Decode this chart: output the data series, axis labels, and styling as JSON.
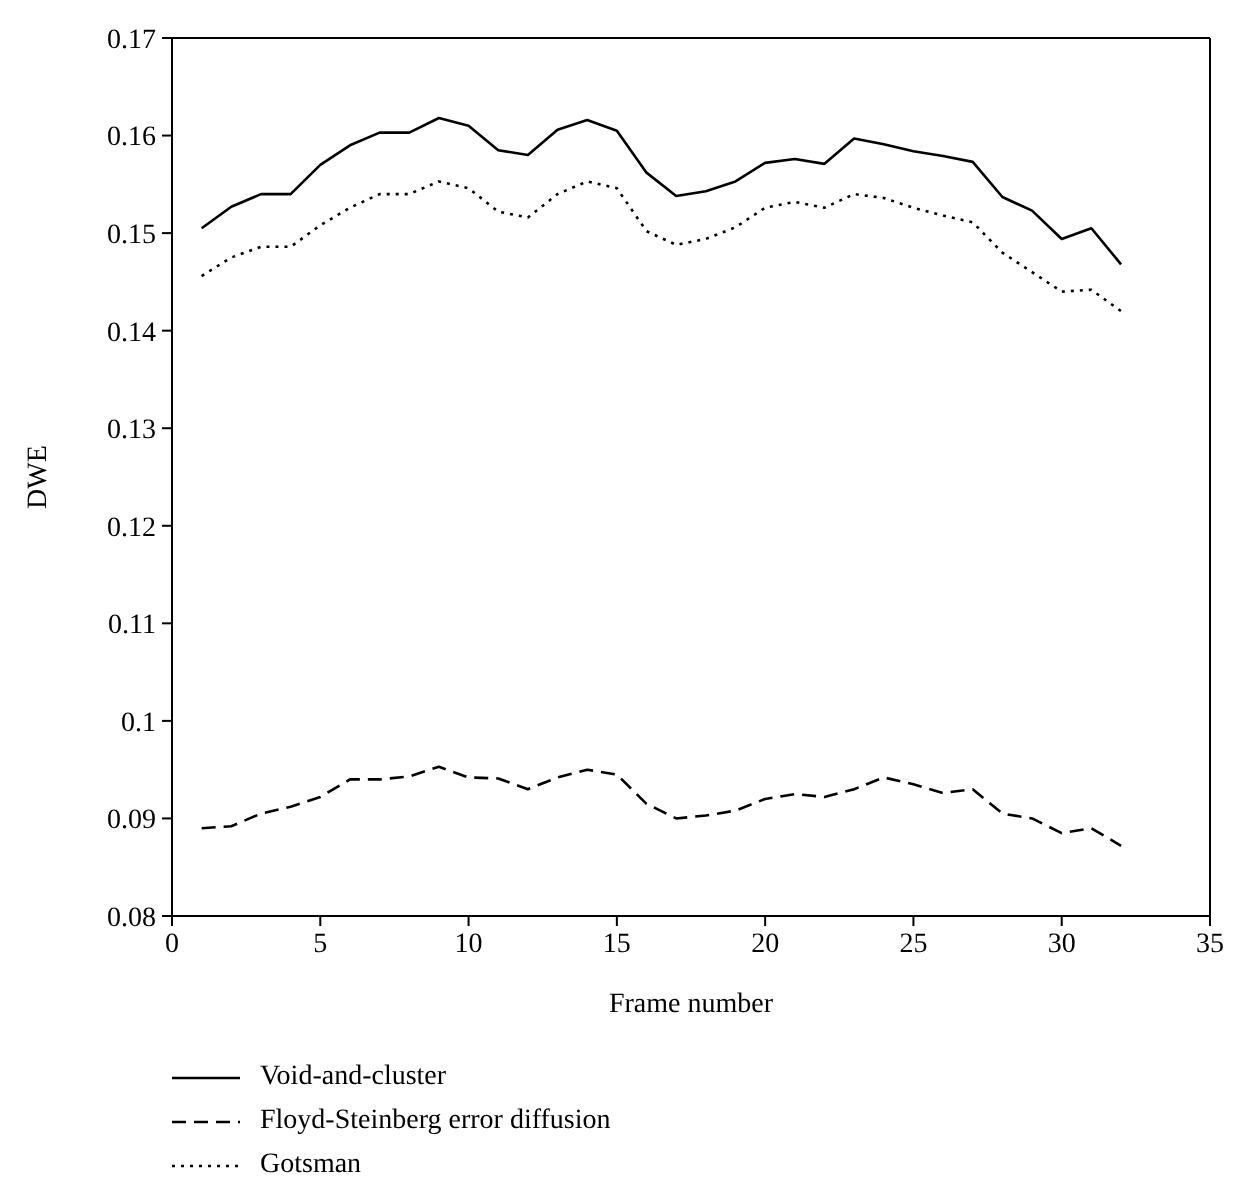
{
  "chart_data": {
    "type": "line",
    "xlabel": "Frame number",
    "ylabel": "DWE",
    "x": [
      1,
      2,
      3,
      4,
      5,
      6,
      7,
      8,
      9,
      10,
      11,
      12,
      13,
      14,
      15,
      16,
      17,
      18,
      19,
      20,
      21,
      22,
      23,
      24,
      25,
      26,
      27,
      28,
      29,
      30,
      31,
      32
    ],
    "series": [
      {
        "name": "Void-and-cluster",
        "color": "#000000",
        "line_style": "solid",
        "values": [
          0.1505,
          0.1527,
          0.154,
          0.154,
          0.157,
          0.159,
          0.1603,
          0.1603,
          0.1618,
          0.161,
          0.1585,
          0.158,
          0.1606,
          0.1616,
          0.1605,
          0.1562,
          0.1538,
          0.1543,
          0.1553,
          0.1572,
          0.1576,
          0.1571,
          0.1597,
          0.1591,
          0.1584,
          0.1579,
          0.1573,
          0.1537,
          0.1523,
          0.1494,
          0.1505,
          0.1468
        ]
      },
      {
        "name": "Floyd-Steinberg error diffusion",
        "color": "#000000",
        "line_style": "dashed",
        "values": [
          0.089,
          0.0892,
          0.0905,
          0.0912,
          0.0922,
          0.094,
          0.094,
          0.0943,
          0.0953,
          0.0942,
          0.0941,
          0.093,
          0.0942,
          0.095,
          0.0945,
          0.0915,
          0.09,
          0.0903,
          0.0908,
          0.092,
          0.0925,
          0.0922,
          0.093,
          0.0942,
          0.0935,
          0.0926,
          0.093,
          0.0905,
          0.09,
          0.0885,
          0.089,
          0.0872
        ]
      },
      {
        "name": "Gotsman",
        "color": "#000000",
        "line_style": "dotted",
        "values": [
          0.1456,
          0.1475,
          0.1486,
          0.1486,
          0.1508,
          0.1526,
          0.154,
          0.154,
          0.1553,
          0.1546,
          0.1522,
          0.1516,
          0.154,
          0.1553,
          0.1546,
          0.1502,
          0.1488,
          0.1494,
          0.1506,
          0.1526,
          0.1532,
          0.1526,
          0.154,
          0.1536,
          0.1526,
          0.1518,
          0.1511,
          0.148,
          0.146,
          0.144,
          0.1442,
          0.142
        ]
      }
    ],
    "xlim": [
      0,
      35
    ],
    "xticks": [
      0,
      5,
      10,
      15,
      20,
      25,
      30,
      35
    ],
    "ylim": [
      0.08,
      0.17
    ],
    "yticks": [
      0.08,
      0.09,
      0.1,
      0.11,
      0.12,
      0.13,
      0.14,
      0.15,
      0.16,
      0.17
    ],
    "grid": false,
    "legend": "bottom",
    "marker": "none"
  }
}
